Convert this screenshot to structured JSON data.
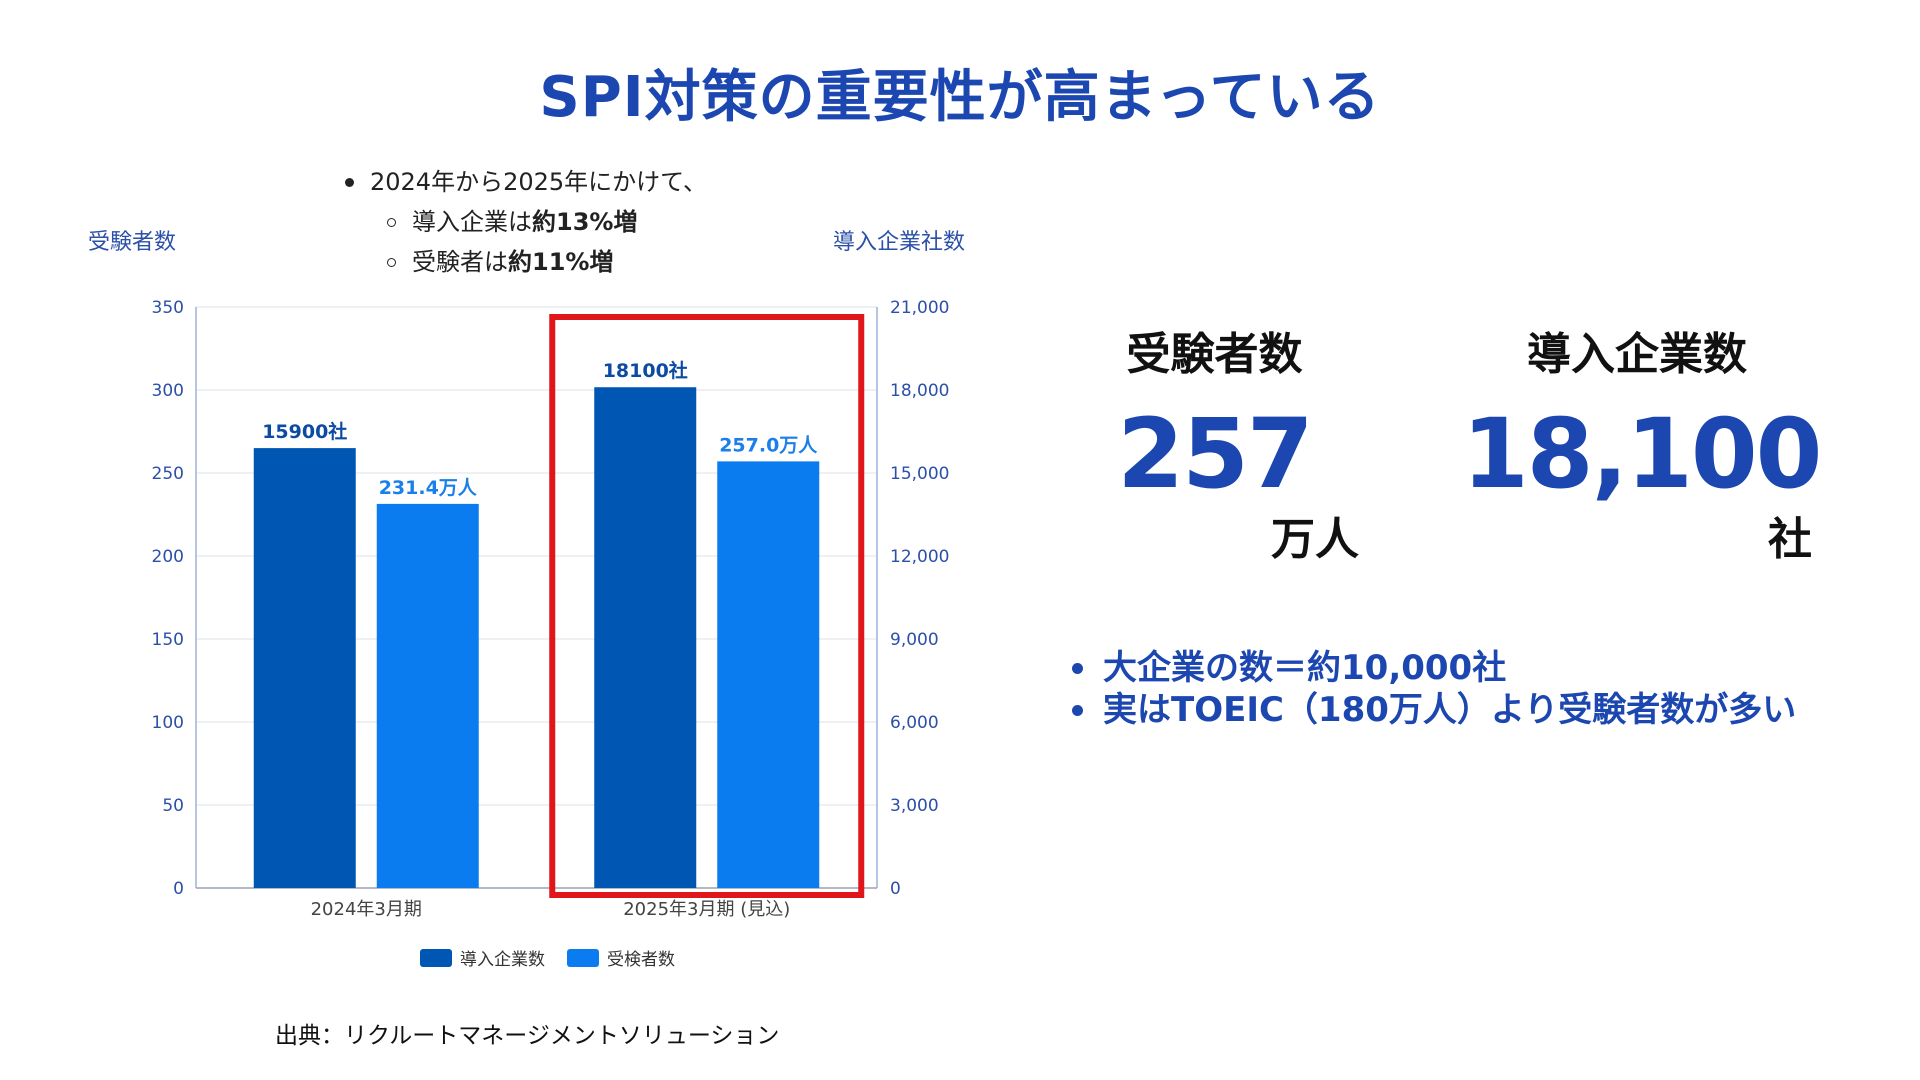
{
  "title": "SPI対策の重要性が高まっている",
  "notes": {
    "main": "2024年から2025年にかけて、",
    "sub": [
      {
        "prefix": "導入企業は",
        "bold": "約13%増"
      },
      {
        "prefix": "受験者は",
        "bold": "約11%増"
      }
    ]
  },
  "axis_titles": {
    "left": "受験者数",
    "right": "導入企業社数"
  },
  "chart_data": {
    "type": "bar",
    "categories": [
      "2024年3月期",
      "2025年3月期 (見込)"
    ],
    "series": [
      {
        "name": "導入企業数",
        "axis": "right",
        "values": [
          15900,
          18100
        ],
        "labels": [
          "15900社",
          "18100社"
        ],
        "color": "#0057b3"
      },
      {
        "name": "受検者数",
        "axis": "left",
        "values": [
          231.4,
          257.0
        ],
        "labels": [
          "231.4万人",
          "257.0万人"
        ],
        "color": "#0a7cf0"
      }
    ],
    "y_left": {
      "range": [
        0,
        350
      ],
      "ticks": [
        "0",
        "50",
        "100",
        "150",
        "200",
        "250",
        "300",
        "350"
      ]
    },
    "y_right": {
      "range": [
        0,
        21000
      ],
      "ticks": [
        "0",
        "3,000",
        "6,000",
        "9,000",
        "12,000",
        "15,000",
        "18,000",
        "21,000"
      ]
    },
    "grid": true,
    "legend": "bottom",
    "highlight_category": "2025年3月期 (見込)",
    "highlight_color": "#e0161b"
  },
  "source": "出典：リクルートマネージメントソリューション",
  "stats": [
    {
      "label": "受験者数",
      "value": "257",
      "unit": "万人"
    },
    {
      "label": "導入企業数",
      "value": "18,100",
      "unit": "社"
    }
  ],
  "highlights": [
    "大企業の数＝約10,000社",
    "実はTOEIC（180万人）より受験者数が多い"
  ],
  "colors": {
    "accent": "#1d47b0",
    "axis_text": "#2c4fa8"
  }
}
